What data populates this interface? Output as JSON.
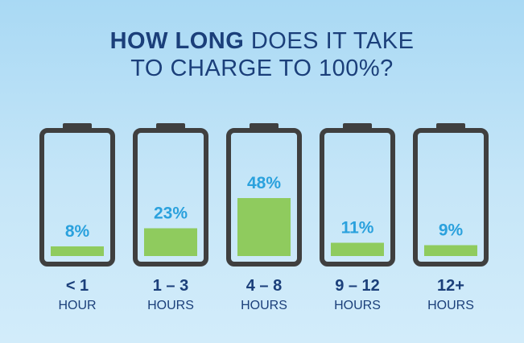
{
  "title": {
    "line1_bold": "HOW LONG",
    "line1_rest": " DOES IT TAKE",
    "line2": "TO CHARGE TO 100%?"
  },
  "colors": {
    "title": "#1b3f7a",
    "battery_outline": "#3f3f3f",
    "fill": "#8fcb5e",
    "percent_label": "#2aa1dd",
    "category_label": "#1b3f7a"
  },
  "chart_data": {
    "type": "bar",
    "categories": [
      {
        "main": "< 1",
        "sub": "HOUR"
      },
      {
        "main": "1 – 3",
        "sub": "HOURS"
      },
      {
        "main": "4 – 8",
        "sub": "HOURS"
      },
      {
        "main": "9 – 12",
        "sub": "HOURS"
      },
      {
        "main": "12+",
        "sub": "HOURS"
      }
    ],
    "values": [
      8,
      23,
      48,
      11,
      9
    ],
    "value_labels": [
      "8%",
      "23%",
      "48%",
      "11%",
      "9%"
    ],
    "title": "HOW LONG DOES IT TAKE TO CHARGE TO 100%?",
    "ylim": [
      0,
      100
    ],
    "grid": false,
    "legend": "none"
  }
}
